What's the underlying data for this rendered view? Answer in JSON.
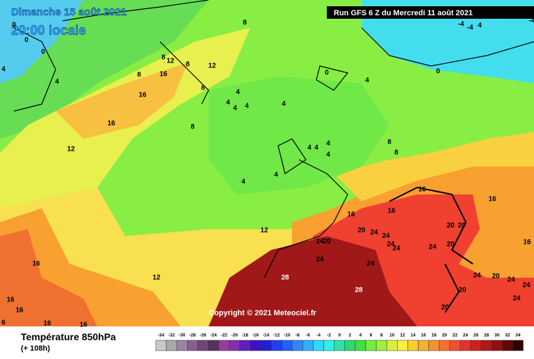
{
  "header": {
    "date": "Dimanche 15 août 2021",
    "time": "20:00 locale",
    "run": "Run GFS 6 Z du Mercredi 11 août 2021"
  },
  "copyright": "Copyright © 2021 Meteociel.fr",
  "legend": {
    "title": "Température 850hPa",
    "lead": "(+ 108h)",
    "ticks": [
      -34,
      -32,
      -30,
      -28,
      -26,
      -24,
      -22,
      -20,
      -18,
      -16,
      -14,
      -12,
      -10,
      -8,
      -6,
      -4,
      -2,
      0,
      2,
      4,
      6,
      8,
      10,
      12,
      14,
      16,
      18,
      20,
      22,
      24,
      26,
      28,
      30,
      32,
      34
    ],
    "colors": [
      "#c8c8c8",
      "#a8a8a8",
      "#a080a8",
      "#886090",
      "#704878",
      "#583060",
      "#9a3aa0",
      "#8030b0",
      "#6020c0",
      "#4010c8",
      "#2020d8",
      "#2040f0",
      "#2060ff",
      "#3088ff",
      "#30b0ff",
      "#30d8ff",
      "#30f0e8",
      "#30e0b0",
      "#30d870",
      "#40e040",
      "#70f040",
      "#a0f040",
      "#d8f040",
      "#f8f040",
      "#f8d030",
      "#f8b030",
      "#f89030",
      "#f87030",
      "#f05030",
      "#e83030",
      "#d02020",
      "#b01818",
      "#901010",
      "#600808",
      "#300000"
    ]
  },
  "contours": [
    "8",
    "0",
    "4",
    "8",
    "12",
    "8",
    "16",
    "8",
    "12",
    "16",
    "4",
    "8",
    "4",
    "4",
    "4",
    "4",
    "4",
    "16",
    "8",
    "12",
    "4",
    "4",
    "4",
    "4",
    "4",
    "4",
    "0",
    "4",
    "0",
    "8",
    "8",
    "16",
    "16",
    "16",
    "16",
    "12",
    "20",
    "24",
    "24",
    "24",
    "20",
    "20",
    "20",
    "24",
    "24",
    "24",
    "20",
    "16",
    "24",
    "24",
    "28",
    "28",
    "24",
    "20",
    "24",
    "20",
    "24",
    "12",
    "16",
    "16",
    "16",
    "6",
    "16",
    "16",
    "20",
    "24",
    "-4",
    "-4",
    "4",
    "-4",
    "0",
    "0"
  ]
}
